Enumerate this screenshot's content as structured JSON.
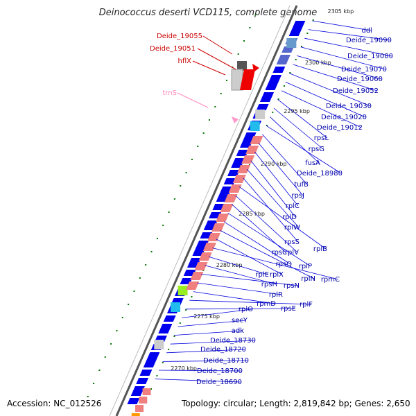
{
  "title": "Deinococcus deserti VCD115, complete genome",
  "accession": "Accession: NC_012526",
  "topology": "Topology: circular; Length: 2,819,842 bp; Genes: 2,650",
  "colors": {
    "forward_gene": "#0000ee",
    "rna_gene": "#f08080",
    "highlight_gene": "#ee0000",
    "trna": "#ff99cc",
    "backbone": "#888888",
    "tick": "#007700",
    "label_line": "#0000dd"
  },
  "kbp_marks": [
    "2305 kbp",
    "2300 kbp",
    "2295 kbp",
    "2290 kbp",
    "2285 kbp",
    "2280 kbp",
    "2275 kbp",
    "2270 kbp"
  ],
  "left_labels": [
    {
      "text": "Deide_19055",
      "color": "#cc0000"
    },
    {
      "text": "Deide_19051",
      "color": "#cc0000"
    },
    {
      "text": "hflX",
      "color": "#cc0000"
    },
    {
      "text": "trnS",
      "color": "#ff88bb"
    }
  ],
  "right_labels": [
    "ddl",
    "Deide_19090",
    "Deide_19080",
    "Deide_19070",
    "Deide_19060",
    "Deide_19052",
    "Deide_19030",
    "Deide_19020",
    "Deide_19012",
    "rpsL",
    "rpsG",
    "fusA",
    "Deide_18980",
    "tufB",
    "rpsJ",
    "rplC",
    "rplD",
    "rplW",
    "rpsS",
    "rplB",
    "rplV",
    "rpsC",
    "rplP",
    "rpsQ",
    "rplN",
    "rplX",
    "rpmC",
    "rplE",
    "rpsH",
    "rpsN",
    "rplR",
    "rpmD",
    "rplF",
    "rpsE",
    "rplO",
    "secY",
    "adk",
    "Deide_18730",
    "Deide_18720",
    "Deide_18710",
    "Deide_18700",
    "Deide_18690"
  ]
}
